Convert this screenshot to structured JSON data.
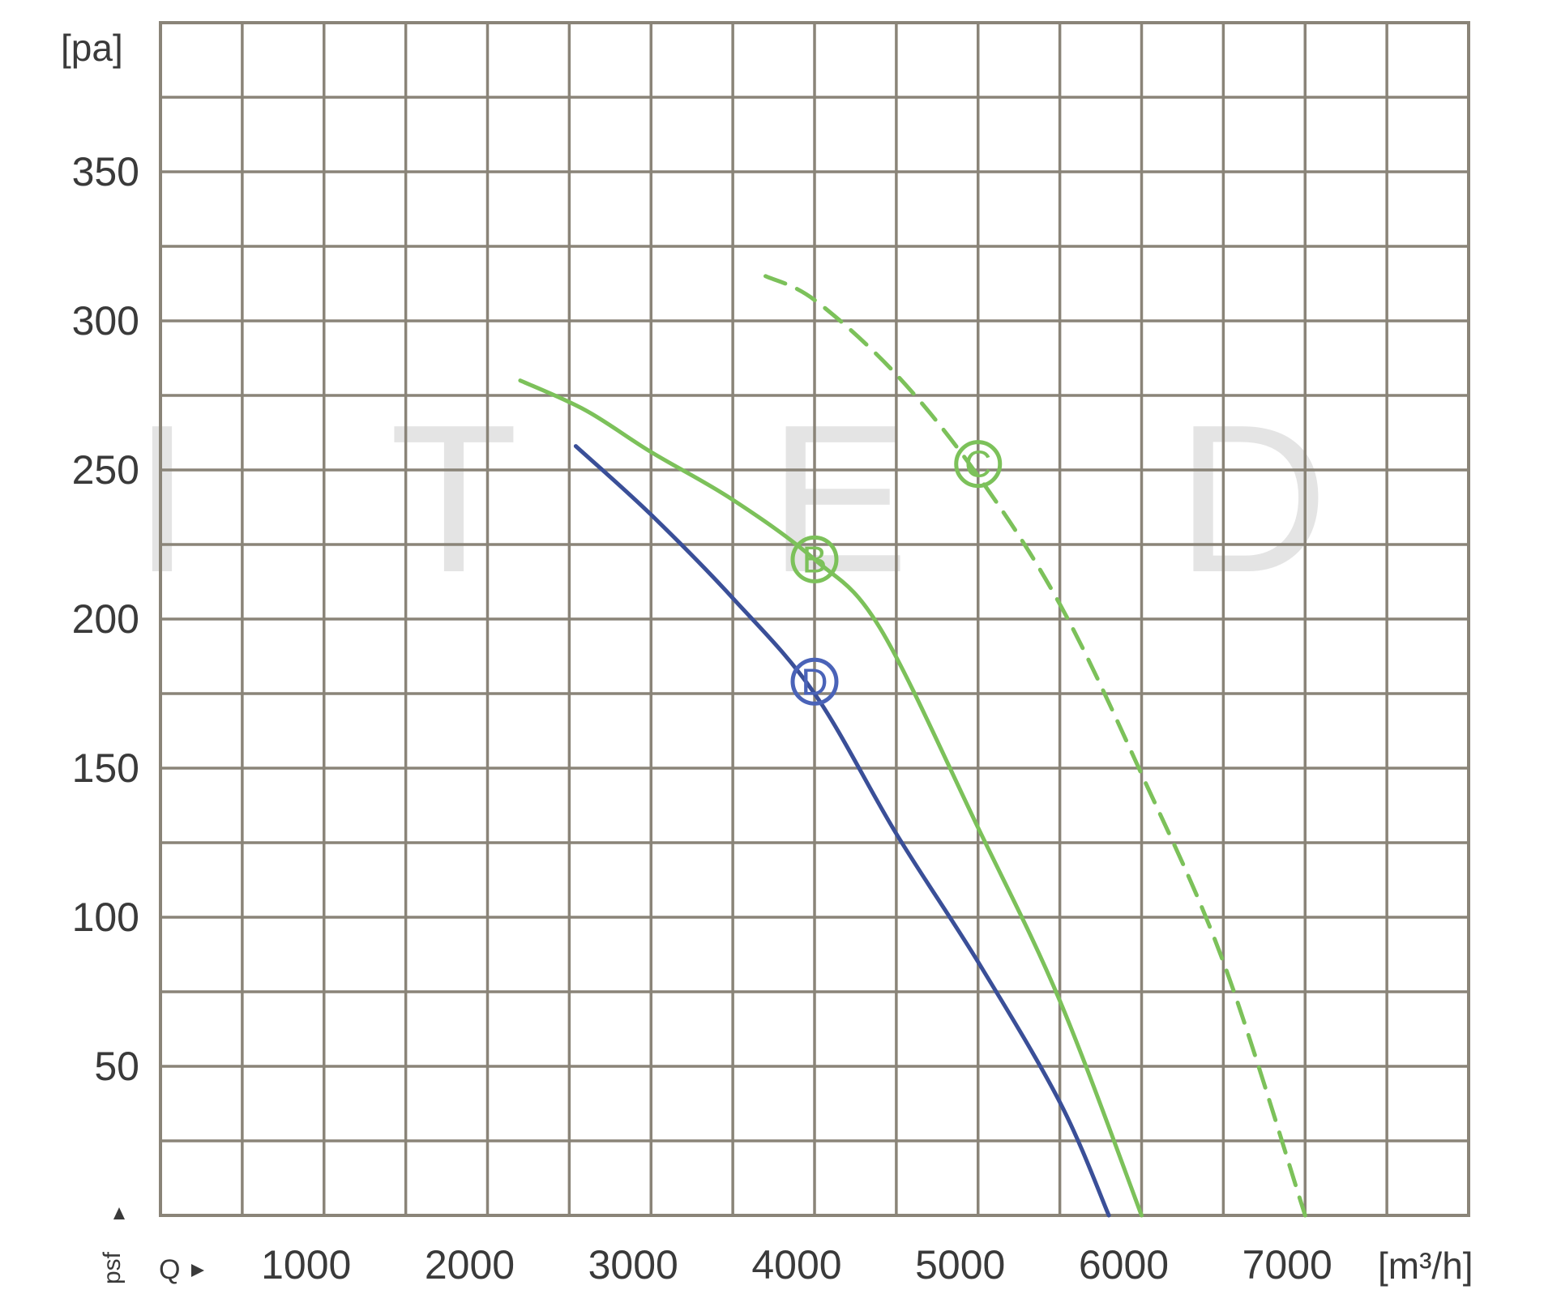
{
  "chart_data": {
    "type": "line",
    "ylabel": "[pa]",
    "ylabel_bottom": "psf",
    "xlabel_prefix": "Q",
    "xunit": "[m³/h]",
    "xlim": [
      0,
      8000
    ],
    "ylim": [
      0,
      400
    ],
    "x_ticks": [
      1000,
      2000,
      3000,
      4000,
      5000,
      6000,
      7000
    ],
    "y_ticks": [
      50,
      100,
      150,
      200,
      250,
      300,
      350
    ],
    "grid": true,
    "watermark": [
      "I",
      "T",
      "E",
      "D"
    ],
    "series": [
      {
        "color": "#3a4f98",
        "dashed": false,
        "x": [
          2540,
          3000,
          3500,
          4000,
          4500,
          5000,
          5500,
          5800
        ],
        "y": [
          258,
          235,
          207,
          175,
          128,
          85,
          38,
          0
        ]
      },
      {
        "color": "#7cc15a",
        "dashed": false,
        "x": [
          2200,
          2600,
          3000,
          3500,
          4000,
          4400,
          5000,
          5500,
          6000
        ],
        "y": [
          280,
          270,
          256,
          240,
          220,
          197,
          130,
          72,
          0
        ]
      },
      {
        "color": "#7cc15a",
        "dashed": true,
        "x": [
          3700,
          4000,
          4500,
          5000,
          5500,
          6000,
          6500,
          7000
        ],
        "y": [
          315,
          307,
          282,
          248,
          205,
          148,
          85,
          0
        ]
      }
    ],
    "markers": [
      {
        "label": "B",
        "x": 4000,
        "y": 220,
        "color": "#7cc15a"
      },
      {
        "label": "C",
        "x": 5000,
        "y": 252,
        "color": "#7cc15a"
      },
      {
        "label": "D",
        "x": 4000,
        "y": 179,
        "color": "#4a63b8"
      }
    ]
  }
}
